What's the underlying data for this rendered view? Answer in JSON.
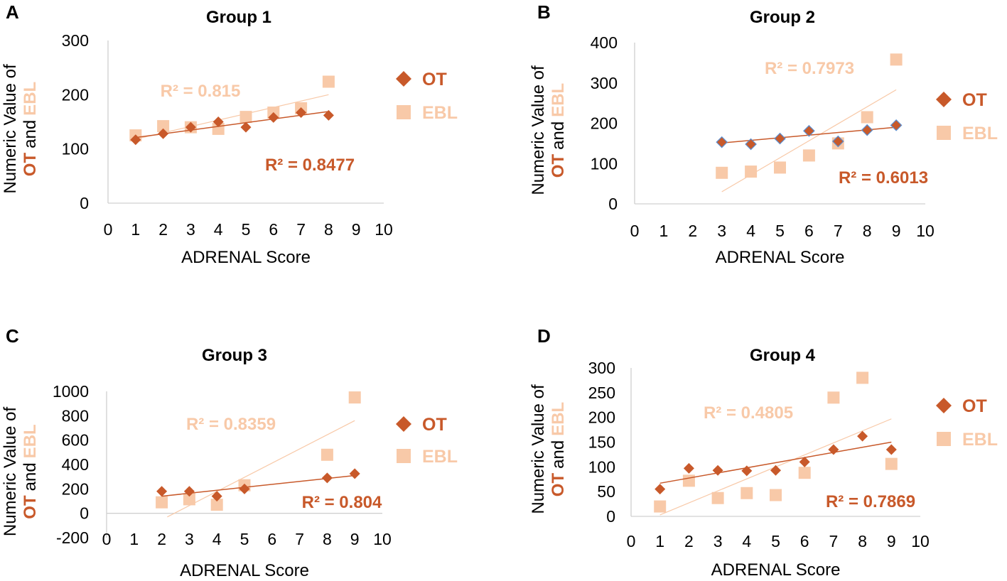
{
  "colors": {
    "ot": "#c8592a",
    "ebl": "#f8c9a8",
    "axis": "#d0d0d0",
    "ot_border": "#5b8fd0"
  },
  "icons": {
    "ot_marker": "diamond-icon",
    "ebl_marker": "square-icon"
  },
  "chart_data": [
    {
      "type": "scatter",
      "panel_label": "A",
      "title": "Group 1",
      "xlabel": "ADRENAL Score",
      "ylabel_parts": [
        "Numeric Value of",
        "OT",
        "and",
        "EBL"
      ],
      "xlim": [
        0,
        10
      ],
      "ylim": [
        0,
        300
      ],
      "xticks": [
        "0",
        "1",
        "2",
        "3",
        "4",
        "5",
        "6",
        "7",
        "8",
        "9",
        "10"
      ],
      "yticks": [
        "0",
        "100",
        "200",
        "300"
      ],
      "legend": [
        "OT",
        "EBL"
      ],
      "legend_position": "right",
      "series": [
        {
          "name": "OT",
          "x": [
            1,
            2,
            3,
            4,
            5,
            6,
            7,
            8
          ],
          "y": [
            117,
            128,
            140,
            150,
            140,
            158,
            167,
            162
          ],
          "trend": [
            [
              1,
              121
            ],
            [
              8,
              169
            ]
          ],
          "r2": "R² = 0.8477"
        },
        {
          "name": "EBL",
          "x": [
            1,
            2,
            3,
            4,
            5,
            6,
            7,
            8
          ],
          "y": [
            125,
            142,
            140,
            137,
            159,
            167,
            175,
            224
          ],
          "trend": [
            [
              1,
              118
            ],
            [
              8,
              200
            ]
          ],
          "r2": "R² = 0.815"
        }
      ]
    },
    {
      "type": "scatter",
      "panel_label": "B",
      "title": "Group 2",
      "xlabel": "ADRENAL Score",
      "ylabel_parts": [
        "Numeric Value of",
        "OT",
        "and",
        "EBL"
      ],
      "xlim": [
        0,
        10
      ],
      "ylim": [
        0,
        400
      ],
      "xticks": [
        "0",
        "1",
        "2",
        "3",
        "4",
        "5",
        "6",
        "7",
        "8",
        "9",
        "10"
      ],
      "yticks": [
        "0",
        "100",
        "200",
        "300",
        "400"
      ],
      "legend": [
        "OT",
        "EBL"
      ],
      "legend_position": "right",
      "series": [
        {
          "name": "OT",
          "x": [
            3,
            4,
            5,
            6,
            7,
            8,
            9
          ],
          "y": [
            153,
            148,
            162,
            181,
            155,
            183,
            195
          ],
          "trend": [
            [
              3,
              151
            ],
            [
              9,
              190
            ]
          ],
          "r2": "R² = 0.6013"
        },
        {
          "name": "EBL",
          "x": [
            3,
            4,
            5,
            6,
            7,
            8,
            9
          ],
          "y": [
            77,
            80,
            90,
            120,
            150,
            215,
            358
          ],
          "trend": [
            [
              3,
              30
            ],
            [
              9,
              283
            ]
          ],
          "r2": "R² = 0.7973"
        }
      ]
    },
    {
      "type": "scatter",
      "panel_label": "C",
      "title": "Group 3",
      "xlabel": "ADRENAL Score",
      "ylabel_parts": [
        "Numeric Value of",
        "OT",
        "and",
        "EBL"
      ],
      "xlim": [
        0,
        10
      ],
      "ylim": [
        -200,
        1000
      ],
      "xticks": [
        "0",
        "1",
        "2",
        "3",
        "4",
        "5",
        "6",
        "7",
        "8",
        "9",
        "10"
      ],
      "yticks": [
        "-200",
        "0",
        "200",
        "400",
        "600",
        "800",
        "1000"
      ],
      "legend": [
        "OT",
        "EBL"
      ],
      "legend_position": "right",
      "series": [
        {
          "name": "OT",
          "x": [
            2,
            3,
            4,
            5,
            8,
            9
          ],
          "y": [
            180,
            180,
            140,
            200,
            290,
            325
          ],
          "trend": [
            [
              2,
              140
            ],
            [
              9,
              310
            ]
          ],
          "r2": "R² = 0.804"
        },
        {
          "name": "EBL",
          "x": [
            2,
            3,
            4,
            5,
            8,
            9
          ],
          "y": [
            90,
            115,
            70,
            230,
            480,
            950
          ],
          "trend": [
            [
              2.2,
              -30
            ],
            [
              9,
              760
            ]
          ],
          "r2": "R² = 0.8359"
        }
      ]
    },
    {
      "type": "scatter",
      "panel_label": "D",
      "title": "Group 4",
      "xlabel": "ADRENAL Score",
      "ylabel_parts": [
        "Numeric Value of",
        "OT",
        "and",
        "EBL"
      ],
      "xlim": [
        0,
        10
      ],
      "ylim": [
        0,
        300
      ],
      "xticks": [
        "0",
        "1",
        "2",
        "3",
        "4",
        "5",
        "6",
        "7",
        "8",
        "9",
        "10"
      ],
      "yticks": [
        "0",
        "50",
        "100",
        "150",
        "200",
        "250",
        "300"
      ],
      "legend": [
        "OT",
        "EBL"
      ],
      "legend_position": "right",
      "series": [
        {
          "name": "OT",
          "x": [
            1,
            2,
            3,
            4,
            5,
            6,
            7,
            8,
            9
          ],
          "y": [
            55,
            97,
            93,
            92,
            93,
            110,
            135,
            162,
            135
          ],
          "trend": [
            [
              1,
              67
            ],
            [
              9,
              150
            ]
          ],
          "r2": "R² = 0.7869"
        },
        {
          "name": "EBL",
          "x": [
            1,
            2,
            3,
            4,
            5,
            6,
            7,
            8,
            9
          ],
          "y": [
            20,
            72,
            37,
            47,
            43,
            88,
            240,
            280,
            106
          ],
          "trend": [
            [
              1,
              3
            ],
            [
              9,
              197
            ]
          ],
          "r2": "R² = 0.4805"
        }
      ]
    }
  ]
}
